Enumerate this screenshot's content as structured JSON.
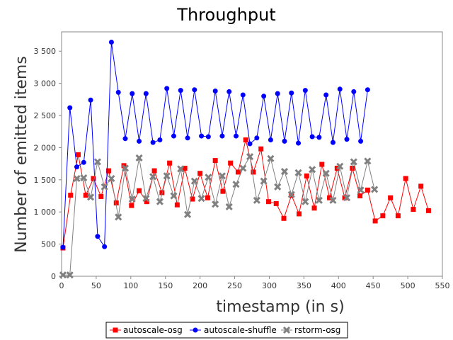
{
  "chart_data": {
    "type": "line",
    "title": "Throughput",
    "xlabel": "timestamp (in s)",
    "ylabel": "Number of emitted items",
    "xlim": [
      0,
      550
    ],
    "ylim": [
      0,
      3800
    ],
    "xticks": [
      0,
      50,
      100,
      150,
      200,
      250,
      300,
      350,
      400,
      450,
      500,
      550
    ],
    "yticks": [
      0,
      500,
      1000,
      1500,
      2000,
      2500,
      3000,
      3500
    ],
    "ytick_labels": [
      "0",
      "500",
      "1 000",
      "1 500",
      "2 000",
      "2 500",
      "3 000",
      "3 500"
    ],
    "grid": false,
    "legend_position": "bottom",
    "series": [
      {
        "name": "autoscale-osg",
        "color": "#ff0000",
        "marker": "square",
        "x": [
          2,
          13,
          24,
          35,
          46,
          57,
          68,
          79,
          90,
          101,
          112,
          123,
          134,
          145,
          156,
          167,
          178,
          189,
          200,
          211,
          222,
          233,
          244,
          255,
          266,
          277,
          288,
          299,
          310,
          321,
          332,
          343,
          354,
          365,
          376,
          387,
          398,
          409,
          420,
          431,
          442,
          453,
          464,
          475,
          486,
          497,
          508,
          519,
          530
        ],
        "y": [
          440,
          1260,
          1890,
          1260,
          1520,
          1240,
          1640,
          1140,
          1720,
          1100,
          1330,
          1160,
          1640,
          1300,
          1760,
          1110,
          1680,
          1200,
          1600,
          1220,
          1800,
          1320,
          1760,
          1620,
          2120,
          1620,
          1980,
          1160,
          1130,
          900,
          1260,
          970,
          1560,
          1060,
          1740,
          1220,
          1680,
          1220,
          1680,
          1250,
          1340,
          860,
          940,
          1220,
          940,
          1520,
          1040,
          1400,
          1020
        ]
      },
      {
        "name": "autoscale-shuffle",
        "color": "#0000ff",
        "marker": "circle",
        "x": [
          2,
          12,
          22,
          32,
          42,
          52,
          62,
          72,
          82,
          92,
          102,
          112,
          122,
          132,
          142,
          152,
          162,
          172,
          182,
          192,
          202,
          212,
          222,
          232,
          242,
          252,
          262,
          272,
          282,
          292,
          302,
          312,
          322,
          332,
          342,
          352,
          362,
          372,
          382,
          392,
          402,
          412,
          422,
          432,
          442
        ],
        "y": [
          450,
          2620,
          1700,
          1770,
          2740,
          620,
          460,
          3640,
          2860,
          2140,
          2840,
          2100,
          2840,
          2080,
          2120,
          2920,
          2180,
          2890,
          2150,
          2900,
          2180,
          2170,
          2880,
          2180,
          2870,
          2180,
          2820,
          2060,
          2150,
          2800,
          2120,
          2840,
          2100,
          2850,
          2070,
          2890,
          2170,
          2160,
          2820,
          2080,
          2910,
          2130,
          2870,
          2100,
          2900
        ]
      },
      {
        "name": "rstorm-osg",
        "color": "#808080",
        "marker": "x",
        "x": [
          2,
          12,
          22,
          32,
          42,
          52,
          62,
          72,
          82,
          92,
          102,
          112,
          122,
          132,
          142,
          152,
          162,
          172,
          182,
          192,
          202,
          212,
          222,
          232,
          242,
          252,
          262,
          272,
          282,
          292,
          302,
          312,
          322,
          332,
          342,
          352,
          362,
          372,
          382,
          392,
          402,
          412,
          422,
          432,
          442,
          452
        ],
        "y": [
          20,
          20,
          1520,
          1530,
          1230,
          1780,
          1390,
          1520,
          920,
          1680,
          1200,
          1840,
          1210,
          1550,
          1160,
          1560,
          1250,
          1670,
          960,
          1480,
          1210,
          1540,
          1120,
          1560,
          1080,
          1430,
          1680,
          1860,
          1180,
          1480,
          1830,
          1390,
          1630,
          1270,
          1610,
          1160,
          1660,
          1180,
          1600,
          1180,
          1710,
          1220,
          1780,
          1340,
          1790,
          1350
        ]
      }
    ]
  }
}
